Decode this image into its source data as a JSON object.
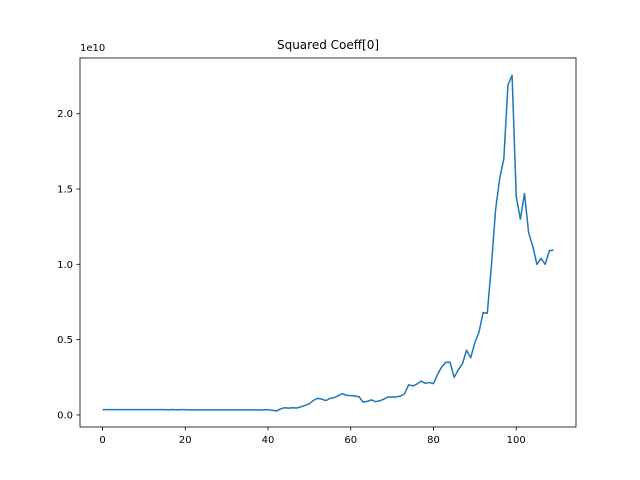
{
  "chart_data": {
    "type": "line",
    "title": "Squared Coeff[0]",
    "xlabel": "",
    "ylabel": "",
    "y_offset_text": "1e10",
    "xlim": [
      -5.45,
      114.45
    ],
    "ylim": [
      -0.08,
      2.37
    ],
    "x_ticks": [
      0,
      20,
      40,
      60,
      80,
      100
    ],
    "x_tick_labels": [
      "0",
      "20",
      "40",
      "60",
      "80",
      "100"
    ],
    "y_ticks": [
      0.0,
      0.5,
      1.0,
      1.5,
      2.0
    ],
    "y_tick_labels": [
      "0.0",
      "0.5",
      "1.0",
      "1.5",
      "2.0"
    ],
    "grid": false,
    "series_color": "#1f77b4",
    "series": [
      {
        "name": "",
        "x": [
          0,
          1,
          2,
          3,
          4,
          5,
          6,
          7,
          8,
          9,
          10,
          11,
          12,
          13,
          14,
          15,
          16,
          17,
          18,
          19,
          20,
          21,
          22,
          23,
          24,
          25,
          26,
          27,
          28,
          29,
          30,
          31,
          32,
          33,
          34,
          35,
          36,
          37,
          38,
          39,
          40,
          41,
          42,
          43,
          44,
          45,
          46,
          47,
          48,
          49,
          50,
          51,
          52,
          53,
          54,
          55,
          56,
          57,
          58,
          59,
          60,
          61,
          62,
          63,
          64,
          65,
          66,
          67,
          68,
          69,
          70,
          71,
          72,
          73,
          74,
          75,
          76,
          77,
          78,
          79,
          80,
          81,
          82,
          83,
          84,
          85,
          86,
          87,
          88,
          89,
          90,
          91,
          92,
          93,
          94,
          95,
          96,
          97,
          98,
          99,
          100,
          101,
          102,
          103,
          104,
          105,
          106,
          107,
          108,
          109
        ],
        "y": [
          0.035,
          0.035,
          0.035,
          0.035,
          0.035,
          0.035,
          0.035,
          0.035,
          0.035,
          0.035,
          0.035,
          0.035,
          0.035,
          0.035,
          0.035,
          0.035,
          0.034,
          0.036,
          0.034,
          0.035,
          0.035,
          0.034,
          0.034,
          0.034,
          0.034,
          0.034,
          0.034,
          0.034,
          0.034,
          0.034,
          0.034,
          0.034,
          0.034,
          0.034,
          0.034,
          0.034,
          0.034,
          0.034,
          0.033,
          0.034,
          0.035,
          0.031,
          0.026,
          0.04,
          0.048,
          0.045,
          0.048,
          0.046,
          0.055,
          0.063,
          0.075,
          0.097,
          0.11,
          0.105,
          0.095,
          0.11,
          0.115,
          0.128,
          0.141,
          0.13,
          0.128,
          0.126,
          0.121,
          0.085,
          0.09,
          0.1,
          0.088,
          0.094,
          0.105,
          0.12,
          0.118,
          0.12,
          0.125,
          0.14,
          0.2,
          0.193,
          0.205,
          0.225,
          0.21,
          0.215,
          0.208,
          0.27,
          0.32,
          0.35,
          0.35,
          0.25,
          0.3,
          0.34,
          0.43,
          0.38,
          0.48,
          0.55,
          0.68,
          0.675,
          0.99,
          1.36,
          1.57,
          1.7,
          2.19,
          2.255,
          1.45,
          1.3,
          1.47,
          1.21,
          1.12,
          1.0,
          1.04,
          1.0,
          1.09,
          1.095
        ]
      }
    ]
  }
}
